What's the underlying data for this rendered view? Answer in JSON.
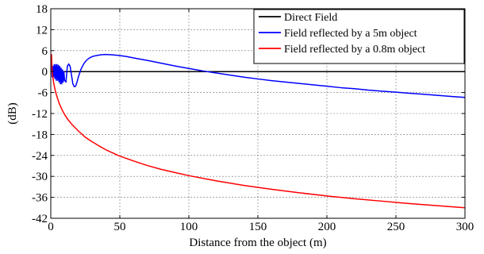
{
  "chart_data": {
    "type": "line",
    "title": "",
    "xlabel": "Distance from the object (m)",
    "ylabel": "(dB)",
    "xlim": [
      0,
      300
    ],
    "ylim": [
      -42,
      18
    ],
    "xticks": [
      0,
      50,
      100,
      150,
      200,
      250,
      300
    ],
    "yticks": [
      -42,
      -36,
      -30,
      -24,
      -18,
      -12,
      -6,
      0,
      6,
      12,
      18
    ],
    "grid": true,
    "legend_position": "top-right",
    "series": [
      {
        "name": "Direct Field",
        "color": "#000000",
        "x": [
          0,
          300
        ],
        "y": [
          0,
          0
        ]
      },
      {
        "name": "Field reflected by a 5m object",
        "color": "#0000ff",
        "x": [
          0.5,
          1.0,
          1.5,
          2.0,
          2.5,
          3.0,
          3.5,
          4.0,
          4.5,
          5.0,
          5.5,
          6.0,
          6.5,
          7.0,
          7.5,
          8.0,
          8.5,
          9.0,
          9.5,
          10,
          11,
          12,
          13,
          14,
          15,
          16,
          17,
          18,
          19,
          20,
          22,
          24,
          26,
          28,
          30,
          33,
          36,
          40,
          45,
          50,
          55,
          60,
          70,
          80,
          90,
          100,
          110,
          120,
          130,
          140,
          150,
          160,
          170,
          180,
          190,
          200,
          210,
          220,
          230,
          240,
          250,
          260,
          270,
          280,
          290,
          300
        ],
        "y": [
          2.0,
          -1.5,
          1.5,
          -1.5,
          2.0,
          -2.0,
          2.0,
          -2.5,
          2.0,
          -2.5,
          1.8,
          -3.0,
          1.5,
          -3.5,
          1.0,
          -3.5,
          0.5,
          -3.0,
          0.0,
          -2.5,
          -3.0,
          1.5,
          2.2,
          1.5,
          -1.0,
          -3.5,
          -4.3,
          -4.2,
          -3.0,
          -1.5,
          0.8,
          2.3,
          3.3,
          3.9,
          4.3,
          4.6,
          4.8,
          4.9,
          4.8,
          4.6,
          4.3,
          3.9,
          3.2,
          2.4,
          1.6,
          0.9,
          0.2,
          -0.4,
          -1.0,
          -1.6,
          -2.1,
          -2.6,
          -3.0,
          -3.4,
          -3.8,
          -4.2,
          -4.6,
          -4.9,
          -5.3,
          -5.6,
          -5.9,
          -6.2,
          -6.5,
          -6.8,
          -7.1,
          -7.4
        ]
      },
      {
        "name": "Field reflected by a 0.8m object",
        "color": "#ff0000",
        "x": [
          0.5,
          1,
          2,
          3,
          4,
          5,
          6,
          8,
          10,
          12,
          15,
          18,
          20,
          25,
          30,
          35,
          40,
          50,
          60,
          70,
          80,
          90,
          100,
          120,
          140,
          160,
          180,
          200,
          220,
          240,
          260,
          280,
          300
        ],
        "y": [
          5.0,
          0.0,
          -3.0,
          -5.0,
          -6.5,
          -7.8,
          -9.0,
          -10.8,
          -12.3,
          -13.5,
          -15.0,
          -16.2,
          -17.0,
          -18.8,
          -20.1,
          -21.3,
          -22.4,
          -24.2,
          -25.6,
          -26.9,
          -28.0,
          -28.9,
          -29.8,
          -31.3,
          -32.6,
          -33.7,
          -34.7,
          -35.6,
          -36.4,
          -37.1,
          -37.8,
          -38.4,
          -39.0
        ]
      }
    ]
  }
}
